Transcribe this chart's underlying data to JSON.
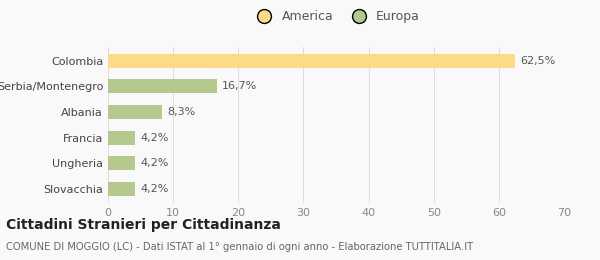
{
  "categories": [
    "Slovacchia",
    "Ungheria",
    "Francia",
    "Albania",
    "Serbia/Montenegro",
    "Colombia"
  ],
  "values": [
    4.2,
    4.2,
    4.2,
    8.3,
    16.7,
    62.5
  ],
  "labels": [
    "4,2%",
    "4,2%",
    "4,2%",
    "8,3%",
    "16,7%",
    "62,5%"
  ],
  "colors": [
    "#b5c98e",
    "#b5c98e",
    "#b5c98e",
    "#b5c98e",
    "#b5c98e",
    "#fdd98a"
  ],
  "legend_items": [
    {
      "label": "America",
      "color": "#fdd98a"
    },
    {
      "label": "Europa",
      "color": "#b5c98e"
    }
  ],
  "xlim": [
    0,
    70
  ],
  "xticks": [
    0,
    10,
    20,
    30,
    40,
    50,
    60,
    70
  ],
  "title": "Cittadini Stranieri per Cittadinanza",
  "subtitle": "COMUNE DI MOGGIO (LC) - Dati ISTAT al 1° gennaio di ogni anno - Elaborazione TUTTITALIA.IT",
  "background_color": "#f9f9f9",
  "bar_height": 0.55
}
